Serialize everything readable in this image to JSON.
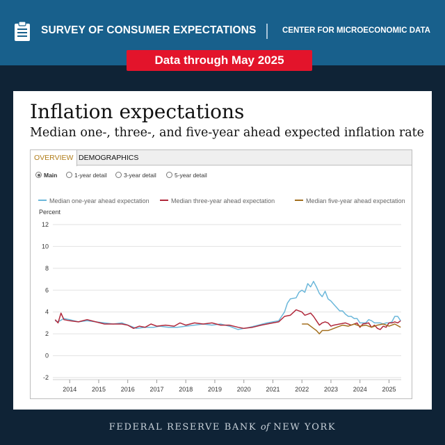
{
  "header": {
    "survey_title": "SURVEY OF CONSUMER EXPECTATIONS",
    "center_title": "CENTER FOR MICROECONOMIC DATA",
    "badge": "Data through May 2025",
    "icon": "clipboard-icon"
  },
  "card": {
    "title": "Inflation expectations",
    "subtitle": "Median one-, three-, and five-year ahead expected inflation rate"
  },
  "tabs": [
    {
      "label": "OVERVIEW",
      "active": true
    },
    {
      "label": "DEMOGRAPHICS",
      "active": false
    }
  ],
  "views": [
    {
      "label": "Main",
      "selected": true
    },
    {
      "label": "1-year detail",
      "selected": false
    },
    {
      "label": "3-year detail",
      "selected": false
    },
    {
      "label": "5-year detail",
      "selected": false
    }
  ],
  "footer": {
    "part1": "FEDERAL RESERVE BANK ",
    "part2": "of",
    "part3": " NEW YORK"
  },
  "chart_data": {
    "type": "line",
    "title": "Inflation expectations",
    "ylabel": "Percent",
    "ylim": [
      -2,
      12
    ],
    "yticks": [
      -2,
      0,
      2,
      4,
      6,
      8,
      10,
      12
    ],
    "xlim": [
      2013.42,
      2025.42
    ],
    "xticks": [
      2014,
      2015,
      2016,
      2017,
      2018,
      2019,
      2020,
      2021,
      2022,
      2023,
      2024,
      2025
    ],
    "grid": true,
    "legend_position": "top",
    "series": [
      {
        "name": "Median one-year ahead expectation",
        "color": "#6bb7da",
        "points": [
          [
            2013.5,
            3.2
          ],
          [
            2013.6,
            3.1
          ],
          [
            2013.8,
            3.4
          ],
          [
            2014.0,
            3.3
          ],
          [
            2014.3,
            3.1
          ],
          [
            2014.6,
            3.2
          ],
          [
            2014.9,
            3.1
          ],
          [
            2015.2,
            3.0
          ],
          [
            2015.5,
            2.9
          ],
          [
            2015.8,
            3.0
          ],
          [
            2016.1,
            2.7
          ],
          [
            2016.3,
            2.5
          ],
          [
            2016.6,
            2.6
          ],
          [
            2016.9,
            2.6
          ],
          [
            2017.1,
            2.7
          ],
          [
            2017.4,
            2.6
          ],
          [
            2017.7,
            2.6
          ],
          [
            2018.0,
            2.7
          ],
          [
            2018.3,
            2.8
          ],
          [
            2018.6,
            2.9
          ],
          [
            2018.9,
            2.8
          ],
          [
            2019.2,
            2.9
          ],
          [
            2019.5,
            2.7
          ],
          [
            2019.8,
            2.4
          ],
          [
            2020.0,
            2.5
          ],
          [
            2020.2,
            2.6
          ],
          [
            2020.5,
            2.8
          ],
          [
            2020.8,
            3.0
          ],
          [
            2021.0,
            3.1
          ],
          [
            2021.2,
            3.2
          ],
          [
            2021.3,
            3.6
          ],
          [
            2021.4,
            4.0
          ],
          [
            2021.5,
            4.8
          ],
          [
            2021.6,
            5.2
          ],
          [
            2021.8,
            5.3
          ],
          [
            2021.9,
            5.8
          ],
          [
            2022.0,
            6.0
          ],
          [
            2022.1,
            5.8
          ],
          [
            2022.2,
            6.6
          ],
          [
            2022.3,
            6.3
          ],
          [
            2022.4,
            6.8
          ],
          [
            2022.5,
            6.3
          ],
          [
            2022.6,
            5.7
          ],
          [
            2022.7,
            5.4
          ],
          [
            2022.8,
            5.9
          ],
          [
            2022.9,
            5.2
          ],
          [
            2023.0,
            5.0
          ],
          [
            2023.1,
            4.7
          ],
          [
            2023.2,
            4.4
          ],
          [
            2023.3,
            4.1
          ],
          [
            2023.4,
            4.1
          ],
          [
            2023.5,
            3.8
          ],
          [
            2023.6,
            3.6
          ],
          [
            2023.7,
            3.6
          ],
          [
            2023.8,
            3.4
          ],
          [
            2023.9,
            3.4
          ],
          [
            2024.0,
            3.0
          ],
          [
            2024.1,
            3.0
          ],
          [
            2024.2,
            3.0
          ],
          [
            2024.3,
            3.3
          ],
          [
            2024.4,
            3.2
          ],
          [
            2024.5,
            3.0
          ],
          [
            2024.6,
            3.0
          ],
          [
            2024.7,
            3.0
          ],
          [
            2024.8,
            2.9
          ],
          [
            2024.9,
            3.0
          ],
          [
            2025.0,
            3.0
          ],
          [
            2025.1,
            3.1
          ],
          [
            2025.2,
            3.6
          ],
          [
            2025.3,
            3.6
          ],
          [
            2025.4,
            3.2
          ]
        ]
      },
      {
        "name": "Median three-year ahead expectation",
        "color": "#b0273a",
        "points": [
          [
            2013.5,
            3.3
          ],
          [
            2013.6,
            3.0
          ],
          [
            2013.7,
            3.9
          ],
          [
            2013.8,
            3.3
          ],
          [
            2014.0,
            3.2
          ],
          [
            2014.3,
            3.1
          ],
          [
            2014.6,
            3.3
          ],
          [
            2014.9,
            3.1
          ],
          [
            2015.2,
            2.9
          ],
          [
            2015.5,
            2.9
          ],
          [
            2015.8,
            2.9
          ],
          [
            2016.0,
            2.8
          ],
          [
            2016.2,
            2.5
          ],
          [
            2016.4,
            2.7
          ],
          [
            2016.6,
            2.6
          ],
          [
            2016.8,
            2.9
          ],
          [
            2017.0,
            2.7
          ],
          [
            2017.3,
            2.8
          ],
          [
            2017.6,
            2.7
          ],
          [
            2017.8,
            3.0
          ],
          [
            2018.0,
            2.8
          ],
          [
            2018.3,
            3.0
          ],
          [
            2018.6,
            2.9
          ],
          [
            2018.9,
            3.0
          ],
          [
            2019.2,
            2.8
          ],
          [
            2019.5,
            2.8
          ],
          [
            2019.8,
            2.6
          ],
          [
            2020.0,
            2.5
          ],
          [
            2020.3,
            2.6
          ],
          [
            2020.6,
            2.8
          ],
          [
            2020.8,
            2.9
          ],
          [
            2021.0,
            3.0
          ],
          [
            2021.2,
            3.1
          ],
          [
            2021.4,
            3.6
          ],
          [
            2021.6,
            3.7
          ],
          [
            2021.8,
            4.2
          ],
          [
            2022.0,
            4.0
          ],
          [
            2022.1,
            3.7
          ],
          [
            2022.2,
            3.8
          ],
          [
            2022.3,
            3.9
          ],
          [
            2022.4,
            3.6
          ],
          [
            2022.5,
            3.2
          ],
          [
            2022.6,
            2.8
          ],
          [
            2022.7,
            3.0
          ],
          [
            2022.8,
            3.1
          ],
          [
            2022.9,
            3.0
          ],
          [
            2023.0,
            2.7
          ],
          [
            2023.1,
            2.8
          ],
          [
            2023.3,
            2.9
          ],
          [
            2023.5,
            3.0
          ],
          [
            2023.7,
            2.8
          ],
          [
            2023.9,
            3.0
          ],
          [
            2024.0,
            2.6
          ],
          [
            2024.1,
            2.9
          ],
          [
            2024.3,
            3.0
          ],
          [
            2024.4,
            2.6
          ],
          [
            2024.5,
            2.8
          ],
          [
            2024.6,
            2.5
          ],
          [
            2024.7,
            2.4
          ],
          [
            2024.8,
            2.7
          ],
          [
            2024.9,
            2.6
          ],
          [
            2025.0,
            3.0
          ],
          [
            2025.1,
            3.0
          ],
          [
            2025.2,
            3.1
          ],
          [
            2025.3,
            3.0
          ],
          [
            2025.4,
            3.2
          ]
        ]
      },
      {
        "name": "Median five-year ahead expectation",
        "color": "#a36f1e",
        "points": [
          [
            2022.0,
            2.9
          ],
          [
            2022.2,
            2.9
          ],
          [
            2022.4,
            2.5
          ],
          [
            2022.5,
            2.3
          ],
          [
            2022.6,
            2.0
          ],
          [
            2022.7,
            2.3
          ],
          [
            2022.9,
            2.3
          ],
          [
            2023.0,
            2.4
          ],
          [
            2023.2,
            2.6
          ],
          [
            2023.4,
            2.8
          ],
          [
            2023.6,
            2.7
          ],
          [
            2023.8,
            2.9
          ],
          [
            2024.0,
            2.7
          ],
          [
            2024.2,
            2.8
          ],
          [
            2024.4,
            2.6
          ],
          [
            2024.6,
            2.8
          ],
          [
            2024.8,
            2.9
          ],
          [
            2025.0,
            2.7
          ],
          [
            2025.2,
            2.9
          ],
          [
            2025.4,
            2.6
          ]
        ]
      }
    ]
  }
}
